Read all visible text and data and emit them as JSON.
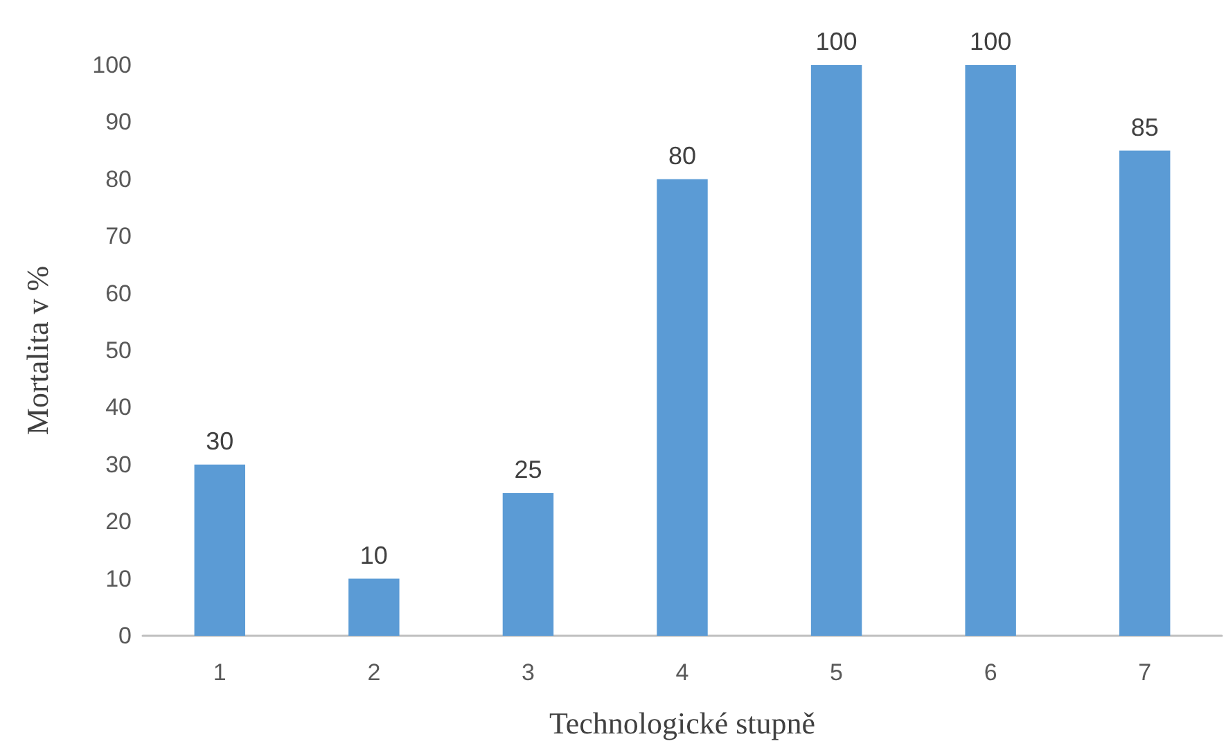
{
  "chart_data": {
    "type": "bar",
    "xlabel": "Technologické stupně",
    "ylabel": "Mortalita v %",
    "categories": [
      "1",
      "2",
      "3",
      "4",
      "5",
      "6",
      "7"
    ],
    "values": [
      30,
      10,
      25,
      80,
      100,
      100,
      85
    ],
    "color": "#5b9bd5",
    "ylim": [
      0,
      100
    ],
    "yticks": [
      0,
      10,
      20,
      30,
      40,
      50,
      60,
      70,
      80,
      90,
      100
    ],
    "grid": false,
    "data_labels": true
  }
}
